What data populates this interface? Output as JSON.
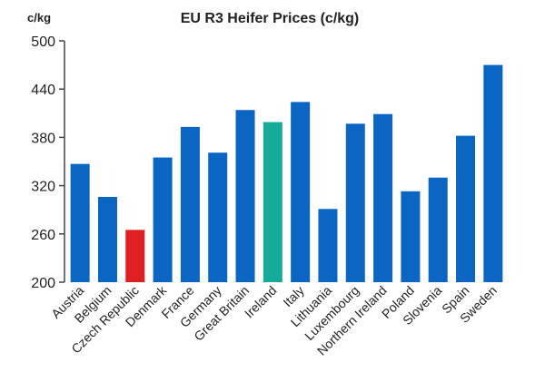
{
  "chart_data": {
    "type": "bar",
    "title": "EU R3 Heifer Prices (c/kg)",
    "ylabel": "c/kg",
    "xlabel": "",
    "ylim": [
      200,
      500
    ],
    "yticks": [
      200,
      260,
      320,
      380,
      440,
      500
    ],
    "grid": false,
    "categories": [
      "Austria",
      "Belgium",
      "Czech Republic",
      "Denmark",
      "France",
      "Germany",
      "Great Britain",
      "Ireland",
      "Italy",
      "Lithuania",
      "Luxembourg",
      "Northern Ireland",
      "Poland",
      "Slovenia",
      "Spain",
      "Sweden"
    ],
    "values": [
      347,
      306,
      265,
      355,
      393,
      361,
      414,
      399,
      424,
      291,
      397,
      409,
      313,
      330,
      382,
      470
    ],
    "colors": [
      "#0a66c2",
      "#0a66c2",
      "#e02020",
      "#0a66c2",
      "#0a66c2",
      "#0a66c2",
      "#0a66c2",
      "#16aa9a",
      "#0a66c2",
      "#0a66c2",
      "#0a66c2",
      "#0a66c2",
      "#0a66c2",
      "#0a66c2",
      "#0a66c2",
      "#0a66c2"
    ],
    "axis_color": "#444444"
  }
}
